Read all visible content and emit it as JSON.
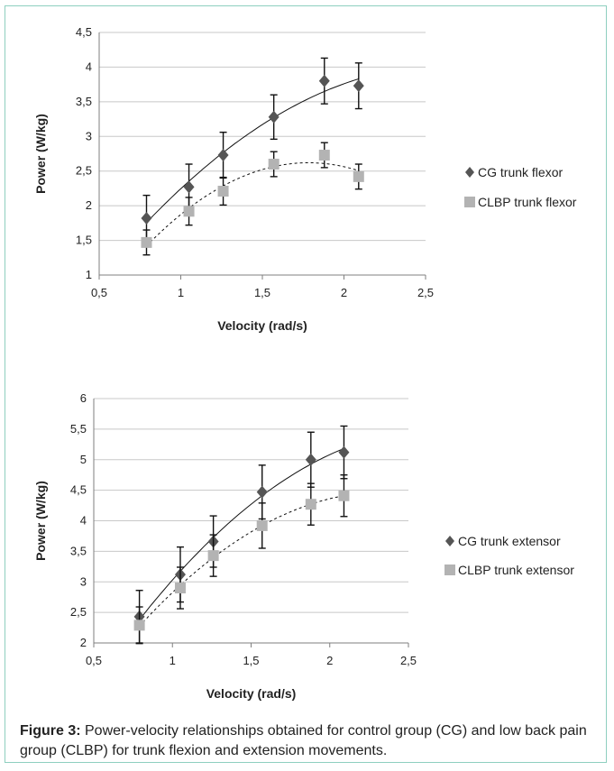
{
  "colors": {
    "cg_marker": "#555555",
    "clbp_marker": "#b3b3b3",
    "grid": "#c8c8c8",
    "axis": "#7f7f7f",
    "frame_border": "#8ecfbf",
    "error_bar": "#111111",
    "trend": "#111111"
  },
  "caption": {
    "label": "Figure 3:",
    "text": " Power-velocity relationships obtained for control group (CG) and low back pain group (CLBP) for trunk flexion and extension movements."
  },
  "chart_data": [
    {
      "type": "scatter",
      "title": "",
      "xlabel": "Velocity (rad/s)",
      "ylabel": "Power (W/kg)",
      "xlim": [
        0.5,
        2.5
      ],
      "ylim": [
        1,
        4.5
      ],
      "xticks": [
        "0,5",
        "1",
        "1,5",
        "2",
        "2,5"
      ],
      "yticks": [
        "1",
        "1,5",
        "2",
        "2,5",
        "3",
        "3,5",
        "4",
        "4,5"
      ],
      "grid": "horizontal",
      "legend_position": "right",
      "series": [
        {
          "name": "CG trunk flexor",
          "marker": "diamond",
          "trendline": "polynomial-solid",
          "x": [
            0.79,
            1.05,
            1.26,
            1.57,
            1.88,
            2.09
          ],
          "y": [
            1.82,
            2.27,
            2.73,
            3.28,
            3.8,
            3.73
          ],
          "error": [
            0.33,
            0.33,
            0.33,
            0.32,
            0.33,
            0.33
          ]
        },
        {
          "name": "CLBP trunk flexor",
          "marker": "square",
          "trendline": "polynomial-dashed",
          "x": [
            0.79,
            1.05,
            1.26,
            1.57,
            1.88,
            2.09
          ],
          "y": [
            1.47,
            1.92,
            2.21,
            2.6,
            2.73,
            2.42
          ],
          "error": [
            0.18,
            0.2,
            0.2,
            0.18,
            0.18,
            0.18
          ]
        }
      ]
    },
    {
      "type": "scatter",
      "title": "",
      "xlabel": "Velocity (rad/s)",
      "ylabel": "Power (W/kg)",
      "xlim": [
        0.5,
        2.5
      ],
      "ylim": [
        2,
        6
      ],
      "xticks": [
        "0,5",
        "1",
        "1,5",
        "2",
        "2,5"
      ],
      "yticks": [
        "2",
        "2,5",
        "3",
        "3,5",
        "4",
        "4,5",
        "5",
        "5,5",
        "6"
      ],
      "grid": "horizontal",
      "legend_position": "right",
      "series": [
        {
          "name": "CG trunk extensor",
          "marker": "diamond",
          "trendline": "polynomial-solid",
          "x": [
            0.79,
            1.05,
            1.26,
            1.57,
            1.88,
            2.09
          ],
          "y": [
            2.43,
            3.12,
            3.66,
            4.47,
            5.0,
            5.12
          ],
          "error": [
            0.43,
            0.45,
            0.42,
            0.44,
            0.45,
            0.43
          ]
        },
        {
          "name": "CLBP trunk extensor",
          "marker": "square",
          "trendline": "polynomial-dashed",
          "x": [
            0.79,
            1.05,
            1.26,
            1.57,
            1.88,
            2.09
          ],
          "y": [
            2.29,
            2.9,
            3.43,
            3.92,
            4.27,
            4.41
          ],
          "error": [
            0.3,
            0.34,
            0.34,
            0.37,
            0.34,
            0.34
          ]
        }
      ]
    }
  ]
}
